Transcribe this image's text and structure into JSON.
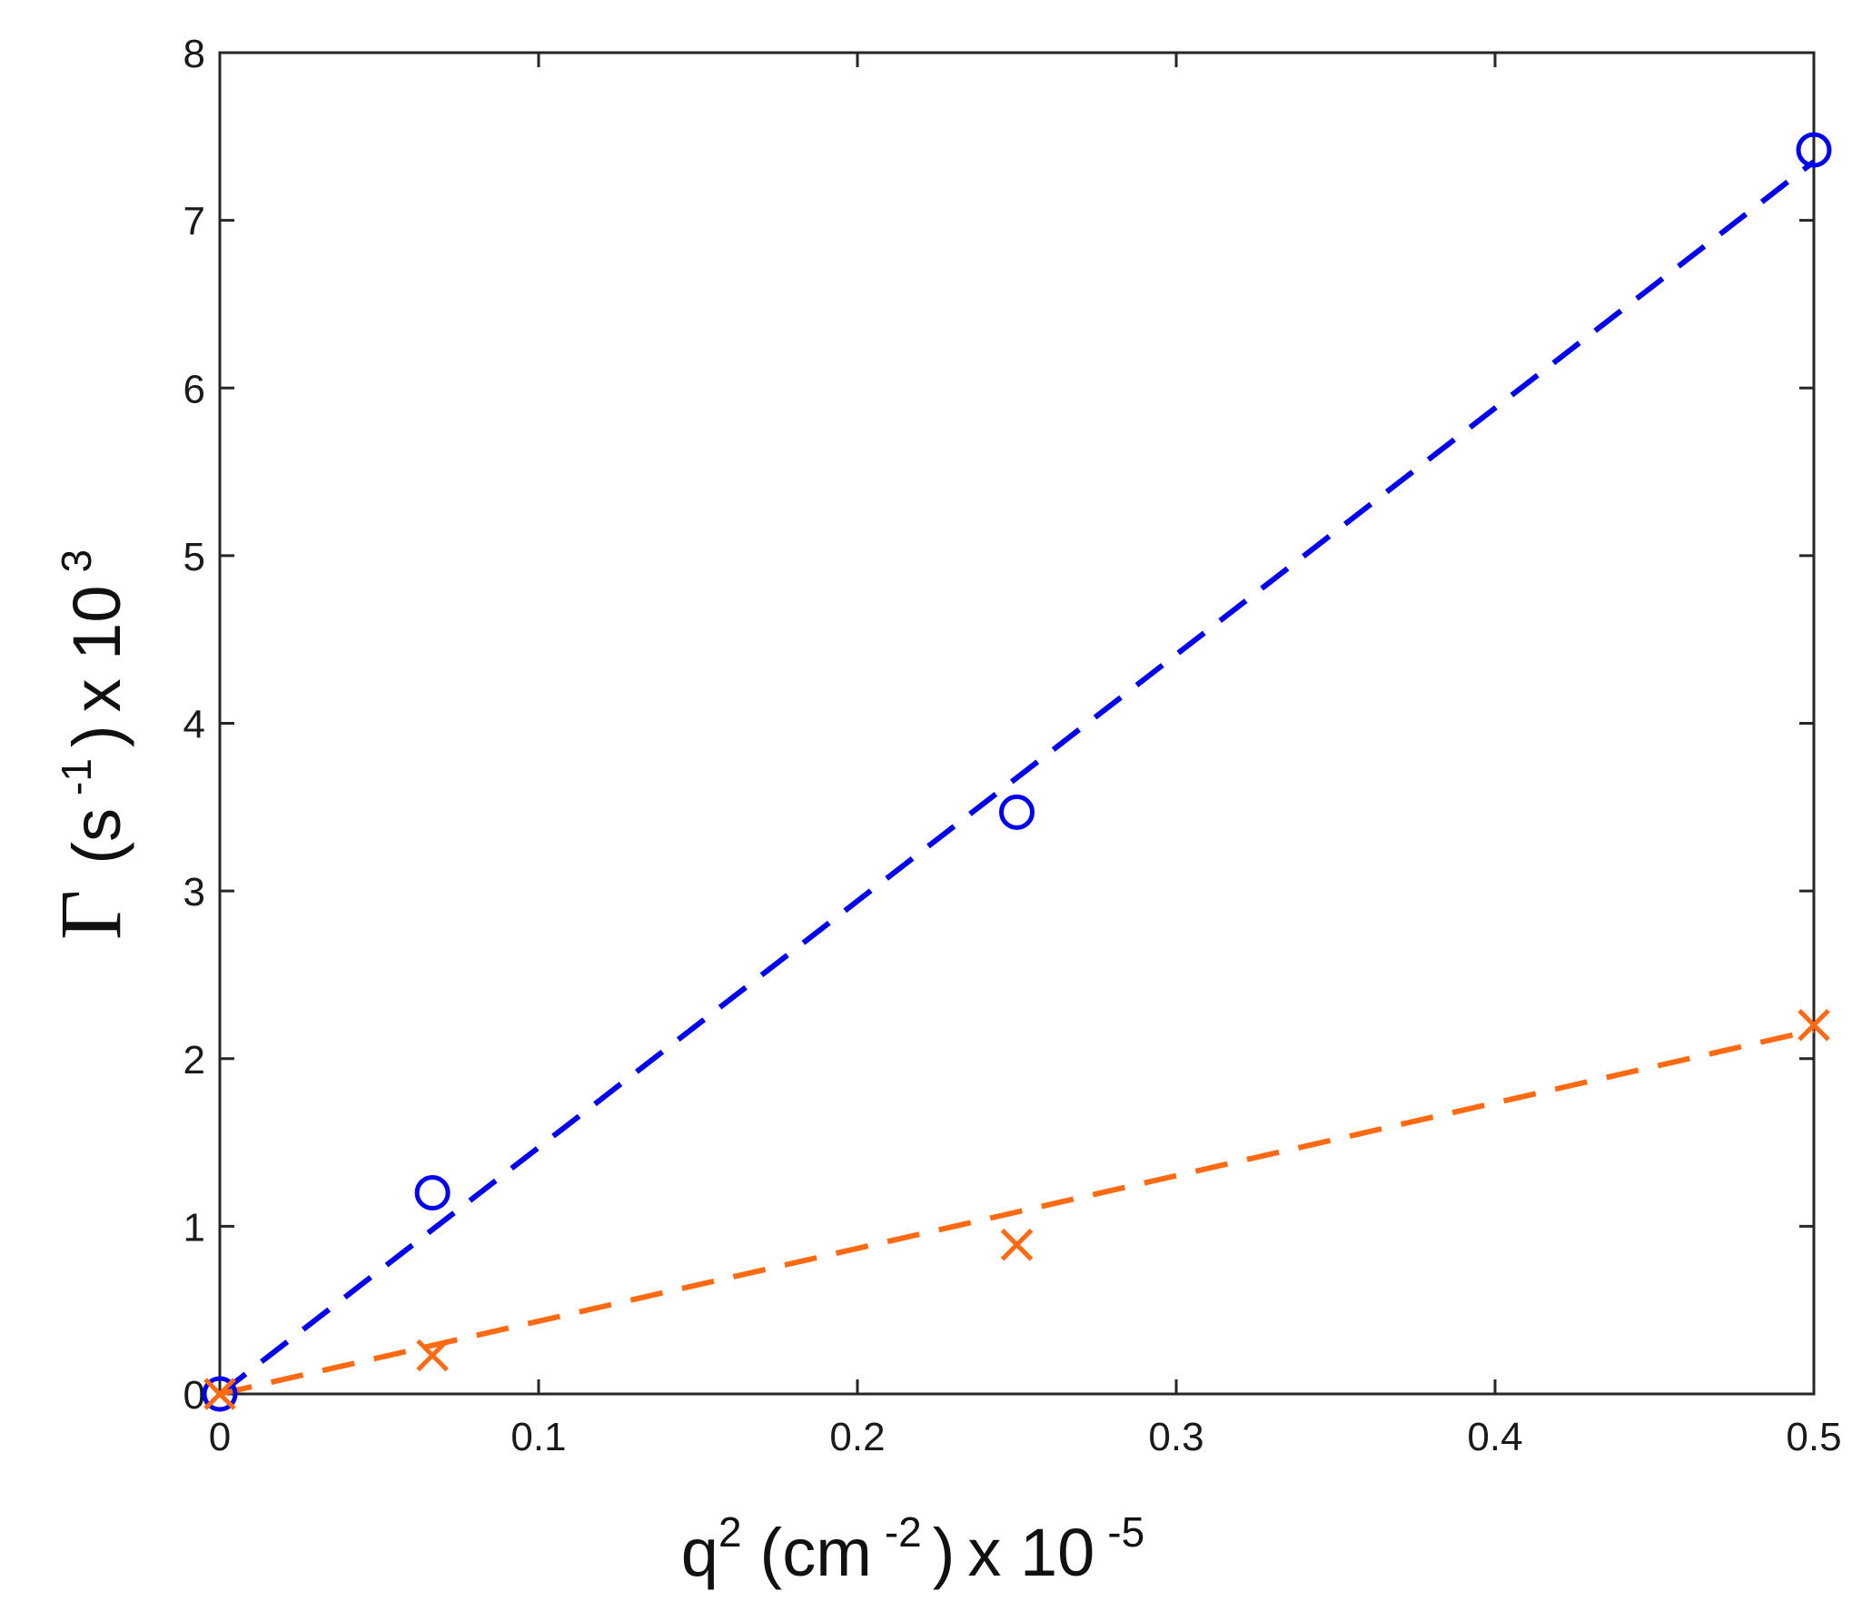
{
  "chart_data": {
    "type": "scatter",
    "title": "",
    "xlabel": {
      "base": "q",
      "base_sup": "2",
      "unit_open": "(cm",
      "unit_sup": "-2",
      "unit_close": ")",
      "scale_base": "x 10",
      "scale_sup": "-5"
    },
    "ylabel": {
      "symbol": "Γ",
      "unit_open": "(s",
      "unit_sup": "-1",
      "unit_close": ")",
      "scale_base": "x 10",
      "scale_sup": "3"
    },
    "xlim": [
      0,
      0.5
    ],
    "ylim": [
      0,
      8
    ],
    "xticks": [
      "0",
      "0.1",
      "0.2",
      "0.3",
      "0.4",
      "0.5"
    ],
    "yticks": [
      "0",
      "1",
      "2",
      "3",
      "4",
      "5",
      "6",
      "7",
      "8"
    ],
    "grid": false,
    "series": [
      {
        "marker": "circle",
        "color": "#0000ee",
        "points": [
          [
            0,
            0
          ],
          [
            0.0667,
            1.2
          ],
          [
            0.25,
            3.47
          ],
          [
            0.5,
            7.42
          ]
        ],
        "fit": [
          [
            0,
            0
          ],
          [
            0.5,
            7.35
          ]
        ]
      },
      {
        "marker": "x",
        "color": "#ff6a13",
        "points": [
          [
            0,
            0
          ],
          [
            0.0667,
            0.23
          ],
          [
            0.25,
            0.89
          ],
          [
            0.5,
            2.2
          ]
        ],
        "fit": [
          [
            0,
            0
          ],
          [
            0.5,
            2.17
          ]
        ]
      }
    ]
  }
}
